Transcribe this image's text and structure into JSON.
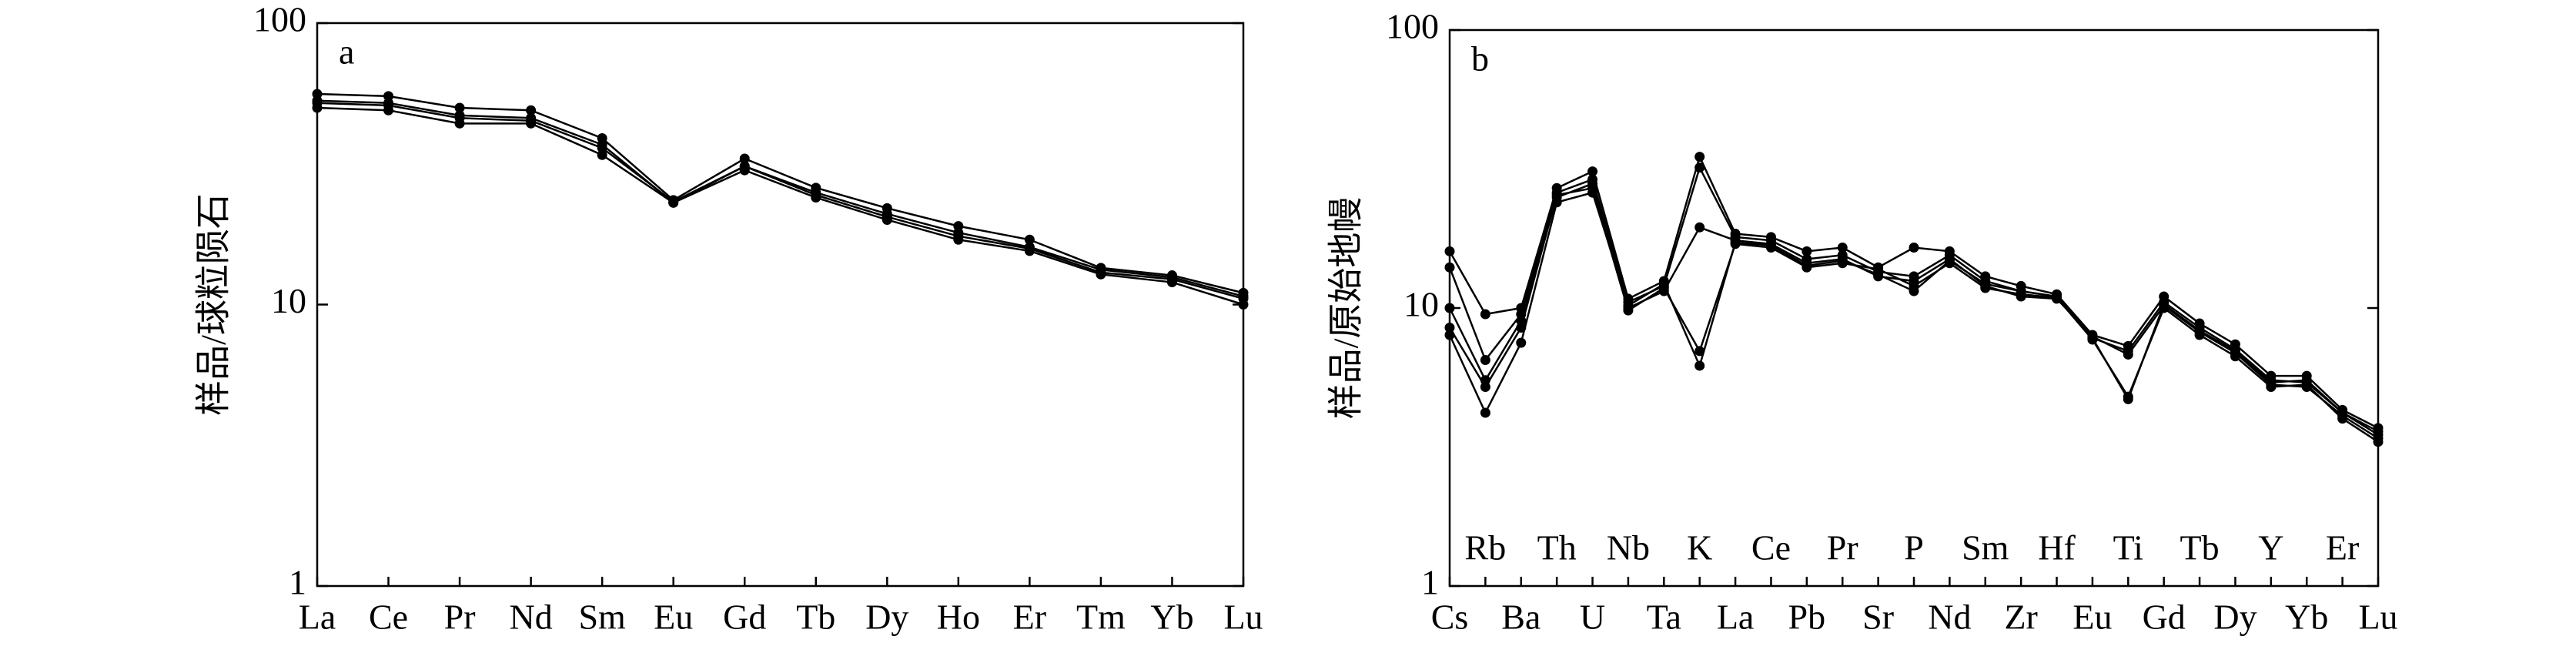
{
  "chart_data": [
    {
      "type": "line",
      "panel": "a",
      "ylabel": "样品/球粒陨石",
      "log": true,
      "color": "#000000",
      "categories": [
        "La",
        "Ce",
        "Pr",
        "Nd",
        "Sm",
        "Eu",
        "Gd",
        "Tb",
        "Dy",
        "Ho",
        "Er",
        "Tm",
        "Yb",
        "Lu"
      ],
      "ylim": [
        1,
        100
      ],
      "yticks": [
        1,
        10,
        100
      ],
      "series": [
        {
          "values": [
            56,
            55,
            50,
            49,
            39,
            23.5,
            33,
            26,
            22,
            19,
            17,
            13.5,
            12.7,
            11
          ]
        },
        {
          "values": [
            53,
            52,
            47,
            46,
            37,
            23,
            31,
            25,
            21,
            18,
            16,
            13.3,
            12.5,
            10.7
          ]
        },
        {
          "values": [
            52,
            51,
            46,
            45,
            36,
            23.2,
            31,
            24.5,
            20.5,
            17.5,
            15.8,
            13,
            12.3,
            10.5
          ]
        },
        {
          "values": [
            50,
            49,
            44,
            44,
            34,
            23,
            30,
            24,
            20,
            17,
            15.5,
            12.8,
            12,
            10
          ]
        }
      ]
    },
    {
      "type": "line",
      "panel": "b",
      "ylabel": "样品/原始地幔",
      "log": true,
      "color": "#000000",
      "categories": [
        "Cs",
        "Rb",
        "Ba",
        "Th",
        "U",
        "Nb",
        "Ta",
        "K",
        "La",
        "Ce",
        "Pb",
        "Pr",
        "Sr",
        "P",
        "Nd",
        "Sm",
        "Zr",
        "Hf",
        "Eu",
        "Ti",
        "Gd",
        "Tb",
        "Dy",
        "Y",
        "Yb",
        "Er",
        "Lu"
      ],
      "ylim": [
        1,
        100
      ],
      "yticks": [
        1,
        10,
        100
      ],
      "series": [
        {
          "values": [
            16,
            9.5,
            10,
            27,
            31,
            10.8,
            12.5,
            35,
            18.5,
            18,
            16,
            16.5,
            14,
            16.5,
            16,
            13,
            12,
            11.2,
            8,
            7.3,
            11,
            8.8,
            7.4,
            5.7,
            5.7,
            4.3,
            3.7
          ]
        },
        {
          "values": [
            14,
            6.5,
            9.5,
            26,
            29,
            10.5,
            12,
            32,
            18,
            17.5,
            15,
            15.5,
            13.5,
            13,
            15.5,
            12.5,
            11.5,
            11,
            7.8,
            7,
            10.5,
            8.5,
            7.1,
            5.5,
            5.4,
            4.2,
            3.5
          ]
        },
        {
          "values": [
            10,
            5.5,
            9,
            25,
            28,
            10,
            11.5,
            19.5,
            17.5,
            17,
            14.5,
            15,
            13,
            12.5,
            15,
            12,
            11,
            10.8,
            7.9,
            6.8,
            10.2,
            8.2,
            6.9,
            5.3,
            5.2,
            4.1,
            3.4
          ]
        },
        {
          "values": [
            8.5,
            5.2,
            8.5,
            25.5,
            27,
            9.8,
            11.8,
            7,
            17,
            16.5,
            14,
            14.5,
            13.8,
            12,
            14.5,
            11.8,
            11.2,
            10.9,
            7.7,
            4.8,
            10,
            8,
            6.7,
            5.2,
            5.3,
            4,
            3.3
          ]
        },
        {
          "values": [
            8,
            4.2,
            7.5,
            24,
            26,
            10.2,
            12.2,
            6.2,
            17.2,
            16.8,
            14.2,
            14.8,
            13.2,
            11.5,
            14.8,
            12.2,
            11.5,
            11,
            7.8,
            4.7,
            10.3,
            8.3,
            7,
            5.4,
            5.5,
            4.2,
            3.6
          ]
        }
      ]
    }
  ]
}
